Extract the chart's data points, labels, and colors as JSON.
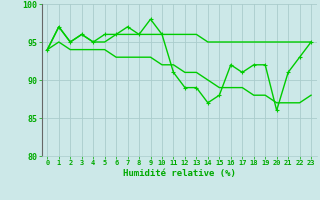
{
  "series": [
    {
      "x": [
        0,
        1,
        2,
        3,
        4,
        5,
        6,
        7,
        8,
        9,
        10,
        11,
        12,
        13,
        14,
        15,
        16,
        17,
        18,
        19,
        20,
        21,
        22,
        23
      ],
      "y": [
        94,
        97,
        95,
        96,
        95,
        95,
        96,
        96,
        96,
        96,
        96,
        96,
        96,
        96,
        95,
        95,
        95,
        95,
        95,
        95,
        95,
        95,
        95,
        95
      ],
      "color": "#00cc00",
      "linewidth": 1.0,
      "marker": null
    },
    {
      "x": [
        0,
        1,
        2,
        3,
        4,
        5,
        6,
        7,
        8,
        9,
        10,
        11,
        12,
        13,
        14,
        15,
        16,
        17,
        18,
        19,
        20,
        21,
        22,
        23
      ],
      "y": [
        94,
        97,
        95,
        96,
        95,
        96,
        96,
        97,
        96,
        98,
        96,
        91,
        89,
        89,
        87,
        88,
        92,
        91,
        92,
        92,
        86,
        91,
        93,
        95
      ],
      "color": "#00cc00",
      "linewidth": 1.0,
      "marker": "+"
    },
    {
      "x": [
        0,
        1,
        2,
        3,
        4,
        5,
        6,
        7,
        8,
        9,
        10,
        11,
        12,
        13,
        14,
        15,
        16,
        17,
        18,
        19,
        20,
        21,
        22,
        23
      ],
      "y": [
        94,
        95,
        94,
        94,
        94,
        94,
        93,
        93,
        93,
        93,
        92,
        92,
        91,
        91,
        90,
        89,
        89,
        89,
        88,
        88,
        87,
        87,
        87,
        88
      ],
      "color": "#00cc00",
      "linewidth": 1.0,
      "marker": null
    }
  ],
  "xlabel": "Humidité relative (%)",
  "ylabel": "",
  "xlim": [
    -0.5,
    23.5
  ],
  "ylim": [
    80,
    100
  ],
  "yticks": [
    80,
    85,
    90,
    95,
    100
  ],
  "xticks": [
    0,
    1,
    2,
    3,
    4,
    5,
    6,
    7,
    8,
    9,
    10,
    11,
    12,
    13,
    14,
    15,
    16,
    17,
    18,
    19,
    20,
    21,
    22,
    23
  ],
  "bg_color": "#cce8e8",
  "grid_color": "#aacccc",
  "line_color": "#00cc00",
  "text_color": "#00aa00",
  "tick_color": "#00aa00",
  "figsize": [
    3.2,
    2.0
  ],
  "dpi": 100
}
